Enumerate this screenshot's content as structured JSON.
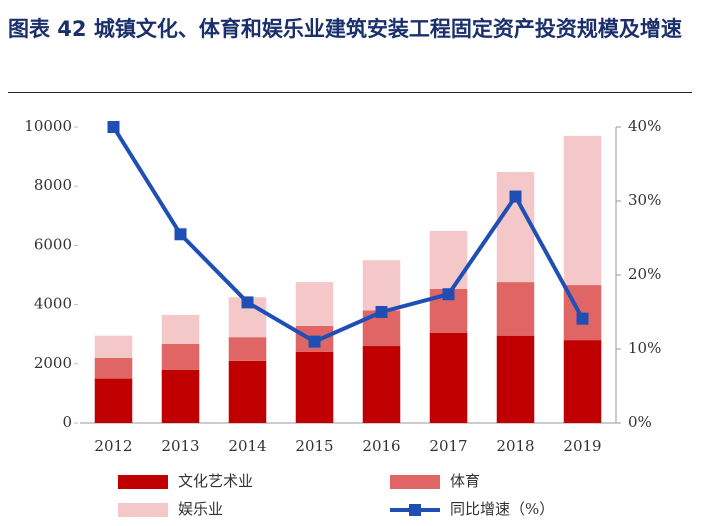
{
  "chart_data": {
    "type": "bar",
    "title": "图表 42 城镇文化、体育和娱乐业建筑安装工程固定资产投资规模及增速",
    "categories": [
      "2012",
      "2013",
      "2014",
      "2015",
      "2016",
      "2017",
      "2018",
      "2019"
    ],
    "stacked": true,
    "series": [
      {
        "name": "文化艺术业",
        "color": "#c00000",
        "values": [
          1500,
          1800,
          2100,
          2400,
          2600,
          3050,
          2950,
          2800
        ]
      },
      {
        "name": "体育",
        "color": "#e06666",
        "values": [
          700,
          870,
          800,
          880,
          1200,
          1480,
          1810,
          1860
        ]
      },
      {
        "name": "娱乐业",
        "color": "#f4c7c9",
        "values": [
          750,
          980,
          1350,
          1480,
          1700,
          1960,
          3720,
          5040
        ]
      },
      {
        "name": "同比增速（%）",
        "type": "line",
        "axis": "y2",
        "color": "#1f4fb4",
        "values": [
          40,
          25.5,
          16.3,
          11,
          15,
          17.4,
          30.6,
          14.1
        ]
      }
    ],
    "ylim": [
      0,
      10000
    ],
    "yticks": [
      0,
      2000,
      4000,
      6000,
      8000,
      10000
    ],
    "y2lim": [
      0,
      40
    ],
    "y2ticks": [
      {
        "value": 0,
        "label": "0%"
      },
      {
        "value": 10,
        "label": "10%"
      },
      {
        "value": 20,
        "label": "20%"
      },
      {
        "value": 30,
        "label": "30%"
      },
      {
        "value": 40,
        "label": "40%"
      }
    ]
  }
}
